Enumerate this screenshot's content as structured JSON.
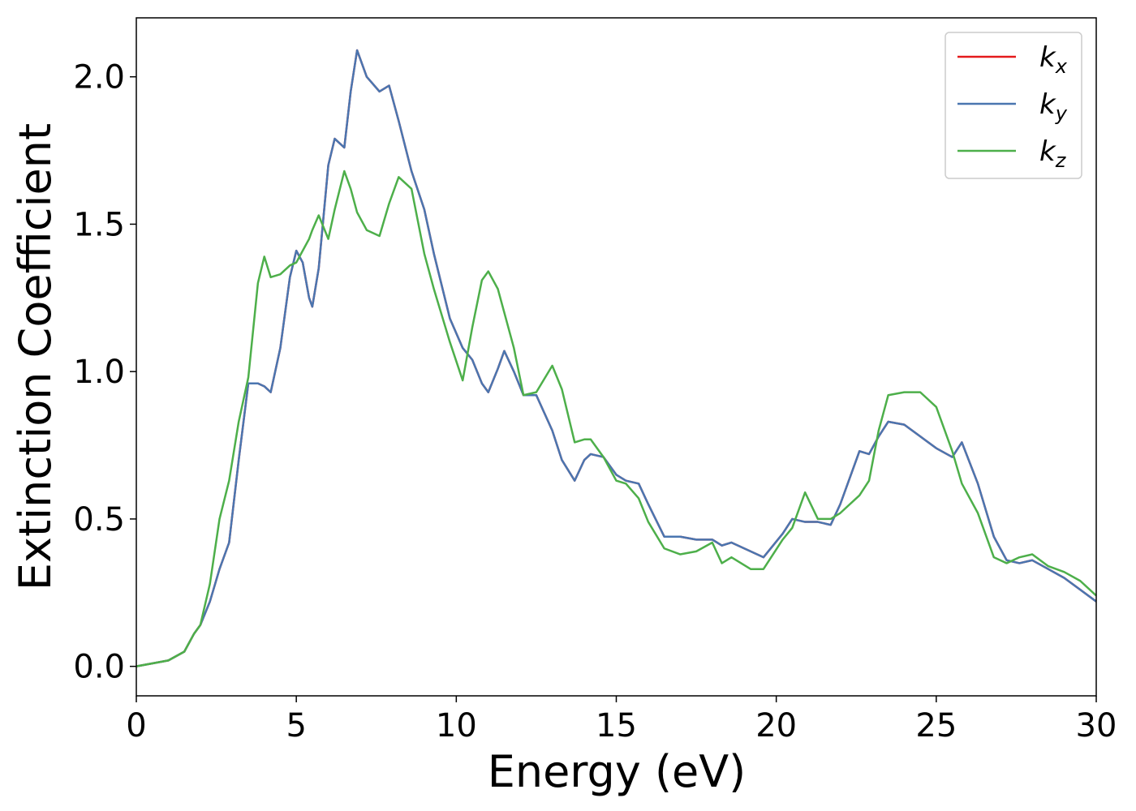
{
  "chart_data": {
    "type": "line",
    "x_label": "Energy (eV)",
    "y_label": "Extinction Coefficient",
    "xlim": [
      0,
      30
    ],
    "ylim": [
      -0.1,
      2.2
    ],
    "xticks": [
      0,
      5,
      10,
      15,
      20,
      25,
      30
    ],
    "yticks": [
      {
        "value": 0,
        "label": "0.0"
      },
      {
        "value": 0.5,
        "label": "0.5"
      },
      {
        "value": 1,
        "label": "1.0"
      },
      {
        "value": 1.5,
        "label": "1.5"
      },
      {
        "value": 2,
        "label": "2.0"
      }
    ],
    "legend": "upper right",
    "x": [
      0,
      1,
      1.5,
      1.8,
      2.0,
      2.3,
      2.6,
      2.9,
      3.2,
      3.5,
      3.8,
      4.0,
      4.2,
      4.5,
      4.8,
      5.0,
      5.2,
      5.4,
      5.5,
      5.7,
      6.0,
      6.2,
      6.5,
      6.7,
      6.9,
      7.2,
      7.6,
      7.9,
      8.2,
      8.6,
      9.0,
      9.3,
      9.8,
      10.2,
      10.5,
      10.8,
      11.0,
      11.3,
      11.5,
      11.8,
      12.1,
      12.5,
      13.0,
      13.3,
      13.7,
      14.0,
      14.2,
      14.6,
      15.0,
      15.3,
      15.7,
      16.0,
      16.5,
      17.0,
      17.5,
      18.0,
      18.3,
      18.6,
      19.2,
      19.6,
      20.2,
      20.5,
      20.9,
      21.3,
      21.7,
      22.0,
      22.6,
      22.9,
      23.2,
      23.5,
      24.0,
      24.5,
      25.0,
      25.5,
      25.8,
      26.3,
      26.8,
      27.2,
      27.6,
      28.0,
      28.5,
      29.0,
      29.5,
      30
    ],
    "series": [
      {
        "name": "kx",
        "color": "#e41a1c",
        "values": [
          0,
          0.02,
          0.05,
          0.11,
          0.14,
          0.22,
          0.33,
          0.42,
          0.7,
          0.96,
          0.96,
          0.95,
          0.93,
          1.08,
          1.32,
          1.41,
          1.37,
          1.25,
          1.22,
          1.35,
          1.7,
          1.79,
          1.76,
          1.95,
          2.09,
          2.0,
          1.95,
          1.97,
          1.85,
          1.68,
          1.55,
          1.4,
          1.18,
          1.08,
          1.04,
          0.96,
          0.93,
          1.01,
          1.07,
          1.0,
          0.92,
          0.92,
          0.8,
          0.7,
          0.63,
          0.7,
          0.72,
          0.71,
          0.65,
          0.63,
          0.62,
          0.55,
          0.44,
          0.44,
          0.43,
          0.43,
          0.41,
          0.42,
          0.39,
          0.37,
          0.45,
          0.5,
          0.49,
          0.49,
          0.48,
          0.55,
          0.73,
          0.72,
          0.78,
          0.83,
          0.82,
          0.78,
          0.74,
          0.71,
          0.76,
          0.62,
          0.44,
          0.36,
          0.35,
          0.36,
          0.33,
          0.3,
          0.26,
          0.22
        ]
      },
      {
        "name": "ky",
        "color": "#4a76b0",
        "values": [
          0,
          0.02,
          0.05,
          0.11,
          0.14,
          0.22,
          0.33,
          0.42,
          0.7,
          0.96,
          0.96,
          0.95,
          0.93,
          1.08,
          1.32,
          1.41,
          1.37,
          1.25,
          1.22,
          1.35,
          1.7,
          1.79,
          1.76,
          1.95,
          2.09,
          2.0,
          1.95,
          1.97,
          1.85,
          1.68,
          1.55,
          1.4,
          1.18,
          1.08,
          1.04,
          0.96,
          0.93,
          1.01,
          1.07,
          1.0,
          0.92,
          0.92,
          0.8,
          0.7,
          0.63,
          0.7,
          0.72,
          0.71,
          0.65,
          0.63,
          0.62,
          0.55,
          0.44,
          0.44,
          0.43,
          0.43,
          0.41,
          0.42,
          0.39,
          0.37,
          0.45,
          0.5,
          0.49,
          0.49,
          0.48,
          0.55,
          0.73,
          0.72,
          0.78,
          0.83,
          0.82,
          0.78,
          0.74,
          0.71,
          0.76,
          0.62,
          0.44,
          0.36,
          0.35,
          0.36,
          0.33,
          0.3,
          0.26,
          0.22
        ]
      },
      {
        "name": "kz",
        "color": "#4daf4a",
        "values": [
          0,
          0.02,
          0.05,
          0.11,
          0.14,
          0.28,
          0.5,
          0.63,
          0.83,
          0.98,
          1.3,
          1.39,
          1.32,
          1.33,
          1.36,
          1.37,
          1.41,
          1.45,
          1.48,
          1.53,
          1.45,
          1.55,
          1.68,
          1.62,
          1.54,
          1.48,
          1.46,
          1.57,
          1.66,
          1.62,
          1.4,
          1.28,
          1.1,
          0.97,
          1.15,
          1.31,
          1.34,
          1.28,
          1.2,
          1.08,
          0.92,
          0.93,
          1.02,
          0.94,
          0.76,
          0.77,
          0.77,
          0.71,
          0.63,
          0.62,
          0.57,
          0.49,
          0.4,
          0.38,
          0.39,
          0.42,
          0.35,
          0.37,
          0.33,
          0.33,
          0.43,
          0.47,
          0.59,
          0.5,
          0.5,
          0.52,
          0.58,
          0.63,
          0.8,
          0.92,
          0.93,
          0.93,
          0.88,
          0.73,
          0.62,
          0.52,
          0.37,
          0.35,
          0.37,
          0.38,
          0.34,
          0.32,
          0.29,
          0.24
        ]
      }
    ]
  }
}
